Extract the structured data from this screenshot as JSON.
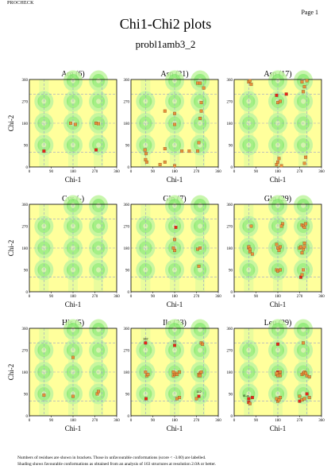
{
  "header": {
    "program": "PROCHECK",
    "page": "Page 1"
  },
  "title": "Chi1-Chi2 plots",
  "subtitle": "probl1amb3_2",
  "footer": {
    "line1": "Numbers of residues are shown in brackets. Those in unfavourable conformations (score < -3.00) are labelled.",
    "line2": "Shading shows favourable conformations as obtained from an analysis of 163 structures at resolution 2.0A or better."
  },
  "colors": {
    "background": "#FFFF9C",
    "favourable_light": "#BFF5A0",
    "favourable_dark": "#6DE35A",
    "core": "#E8F0C0",
    "point_normal": "#E8923C",
    "point_unfavourable": "#E8241C",
    "gridline": "#9AA0C8"
  },
  "chart_data": {
    "type": "scatter",
    "xlabel": "Chi-1",
    "ylabel": "Chi-2",
    "xlim": [
      0,
      360
    ],
    "ylim": [
      0,
      360
    ],
    "xticks": [
      "0",
      "90",
      "180",
      "270",
      "360"
    ],
    "yticks": [
      "0",
      "90",
      "180",
      "270",
      "360"
    ],
    "grid": true,
    "panels": [
      {
        "title": "Arg (6)",
        "residue": "Arg",
        "count": "6",
        "points": [
          [
            60,
            65,
            1
          ],
          [
            275,
            70,
            1
          ],
          [
            170,
            180,
            0
          ],
          [
            190,
            175,
            0
          ],
          [
            275,
            180,
            0
          ],
          [
            285,
            178,
            0
          ]
        ]
      },
      {
        "title": "Asn (21)",
        "residue": "Asn",
        "count": "21",
        "points": [
          [
            58,
            70,
            0
          ],
          [
            62,
            55,
            0
          ],
          [
            60,
            30,
            0
          ],
          [
            65,
            20,
            0
          ],
          [
            140,
            20,
            0
          ],
          [
            120,
            10,
            0
          ],
          [
            180,
            5,
            0
          ],
          [
            140,
            75,
            0
          ],
          [
            140,
            230,
            0
          ],
          [
            180,
            220,
            0
          ],
          [
            180,
            175,
            0
          ],
          [
            210,
            65,
            0
          ],
          [
            240,
            65,
            0
          ],
          [
            275,
            65,
            0
          ],
          [
            280,
            100,
            0
          ],
          [
            285,
            200,
            0
          ],
          [
            290,
            230,
            0
          ],
          [
            290,
            265,
            0
          ],
          [
            300,
            325,
            0
          ],
          [
            275,
            345,
            0
          ],
          [
            285,
            345,
            0
          ]
        ]
      },
      {
        "title": "Asp (17)",
        "residue": "Asp",
        "count": "17",
        "points": [
          [
            60,
            350,
            0
          ],
          [
            65,
            355,
            0
          ],
          [
            70,
            340,
            0
          ],
          [
            175,
            295,
            1
          ],
          [
            215,
            300,
            1
          ],
          [
            180,
            265,
            0
          ],
          [
            190,
            270,
            0
          ],
          [
            175,
            10,
            0
          ],
          [
            180,
            20,
            0
          ],
          [
            185,
            35,
            0
          ],
          [
            195,
            5,
            0
          ],
          [
            285,
            310,
            0
          ],
          [
            290,
            330,
            0
          ],
          [
            280,
            350,
            0
          ],
          [
            300,
            355,
            0
          ],
          [
            290,
            15,
            0
          ],
          [
            295,
            40,
            0
          ]
        ]
      },
      {
        "title": "Cys (-)",
        "residue": "Cys",
        "count": "-",
        "points": []
      },
      {
        "title": "Gln (7)",
        "residue": "Gln",
        "count": "7",
        "points": [
          [
            180,
            215,
            0
          ],
          [
            185,
            265,
            1
          ],
          [
            280,
            105,
            0
          ],
          [
            180,
            170,
            0
          ],
          [
            175,
            180,
            0
          ],
          [
            275,
            175,
            0
          ],
          [
            285,
            180,
            0
          ]
        ]
      },
      {
        "title": "Glu (29)",
        "residue": "Glu",
        "count": "29",
        "points": [
          [
            60,
            180,
            0
          ],
          [
            65,
            165,
            0
          ],
          [
            70,
            270,
            0
          ],
          [
            60,
            185,
            0
          ],
          [
            75,
            155,
            0
          ],
          [
            175,
            90,
            0
          ],
          [
            180,
            85,
            0
          ],
          [
            185,
            175,
            0
          ],
          [
            190,
            185,
            0
          ],
          [
            175,
            195,
            0
          ],
          [
            200,
            280,
            0
          ],
          [
            195,
            270,
            0
          ],
          [
            275,
            60,
            1
          ],
          [
            280,
            70,
            0
          ],
          [
            285,
            90,
            0
          ],
          [
            280,
            160,
            0
          ],
          [
            285,
            175,
            0
          ],
          [
            290,
            185,
            0
          ],
          [
            290,
            200,
            0
          ],
          [
            280,
            275,
            0
          ],
          [
            285,
            270,
            0
          ],
          [
            295,
            280,
            0
          ],
          [
            290,
            265,
            0
          ],
          [
            180,
            180,
            0
          ],
          [
            185,
            170,
            0
          ],
          [
            270,
            180,
            0
          ],
          [
            275,
            185,
            0
          ],
          [
            65,
            175,
            0
          ],
          [
            190,
            90,
            0
          ]
        ]
      },
      {
        "title": "His (5)",
        "residue": "His",
        "count": "5",
        "points": [
          [
            60,
            85,
            0
          ],
          [
            180,
            80,
            0
          ],
          [
            180,
            240,
            0
          ],
          [
            280,
            90,
            0
          ],
          [
            285,
            100,
            0
          ]
        ]
      },
      {
        "title": "Ile (23)",
        "residue": "Ile",
        "count": "23",
        "points": [
          [
            60,
            300,
            1
          ],
          [
            62,
            70,
            1
          ],
          [
            180,
            290,
            1
          ],
          [
            280,
            80,
            1
          ],
          [
            65,
            165,
            0
          ],
          [
            70,
            170,
            0
          ],
          [
            60,
            180,
            0
          ],
          [
            175,
            165,
            0
          ],
          [
            180,
            170,
            0
          ],
          [
            185,
            175,
            0
          ],
          [
            175,
            180,
            0
          ],
          [
            190,
            170,
            0
          ],
          [
            200,
            180,
            0
          ],
          [
            190,
            70,
            0
          ],
          [
            200,
            75,
            0
          ],
          [
            280,
            170,
            0
          ],
          [
            285,
            175,
            0
          ],
          [
            290,
            180,
            0
          ],
          [
            280,
            165,
            0
          ],
          [
            285,
            165,
            0
          ],
          [
            290,
            300,
            0
          ],
          [
            295,
            295,
            0
          ],
          [
            270,
            70,
            0
          ]
        ],
        "labels": [
          {
            "text": "182",
            "x": 60,
            "y": 312
          },
          {
            "text": "63",
            "x": 180,
            "y": 303
          },
          {
            "text": "112",
            "x": 280,
            "y": 95
          }
        ]
      },
      {
        "title": "Leu (29)",
        "residue": "Leu",
        "count": "29",
        "points": [
          [
            60,
            55,
            1
          ],
          [
            60,
            70,
            1
          ],
          [
            75,
            75,
            1
          ],
          [
            180,
            180,
            1
          ],
          [
            180,
            295,
            1
          ],
          [
            270,
            60,
            1
          ],
          [
            300,
            90,
            1
          ],
          [
            310,
            75,
            0
          ],
          [
            180,
            60,
            0
          ],
          [
            175,
            70,
            0
          ],
          [
            185,
            65,
            0
          ],
          [
            190,
            75,
            0
          ],
          [
            175,
            170,
            0
          ],
          [
            185,
            175,
            0
          ],
          [
            190,
            165,
            0
          ],
          [
            280,
            170,
            0
          ],
          [
            285,
            175,
            0
          ],
          [
            290,
            180,
            0
          ],
          [
            300,
            165,
            0
          ],
          [
            310,
            160,
            0
          ],
          [
            295,
            175,
            0
          ],
          [
            285,
            300,
            0
          ],
          [
            270,
            80,
            0
          ],
          [
            180,
            165,
            0
          ],
          [
            175,
            175,
            0
          ],
          [
            65,
            50,
            0
          ],
          [
            280,
            65,
            0
          ],
          [
            290,
            70,
            0
          ],
          [
            190,
            180,
            0
          ]
        ],
        "labels": [
          {
            "text": "ll1-a",
            "x": 48,
            "y": 78
          }
        ]
      }
    ]
  }
}
